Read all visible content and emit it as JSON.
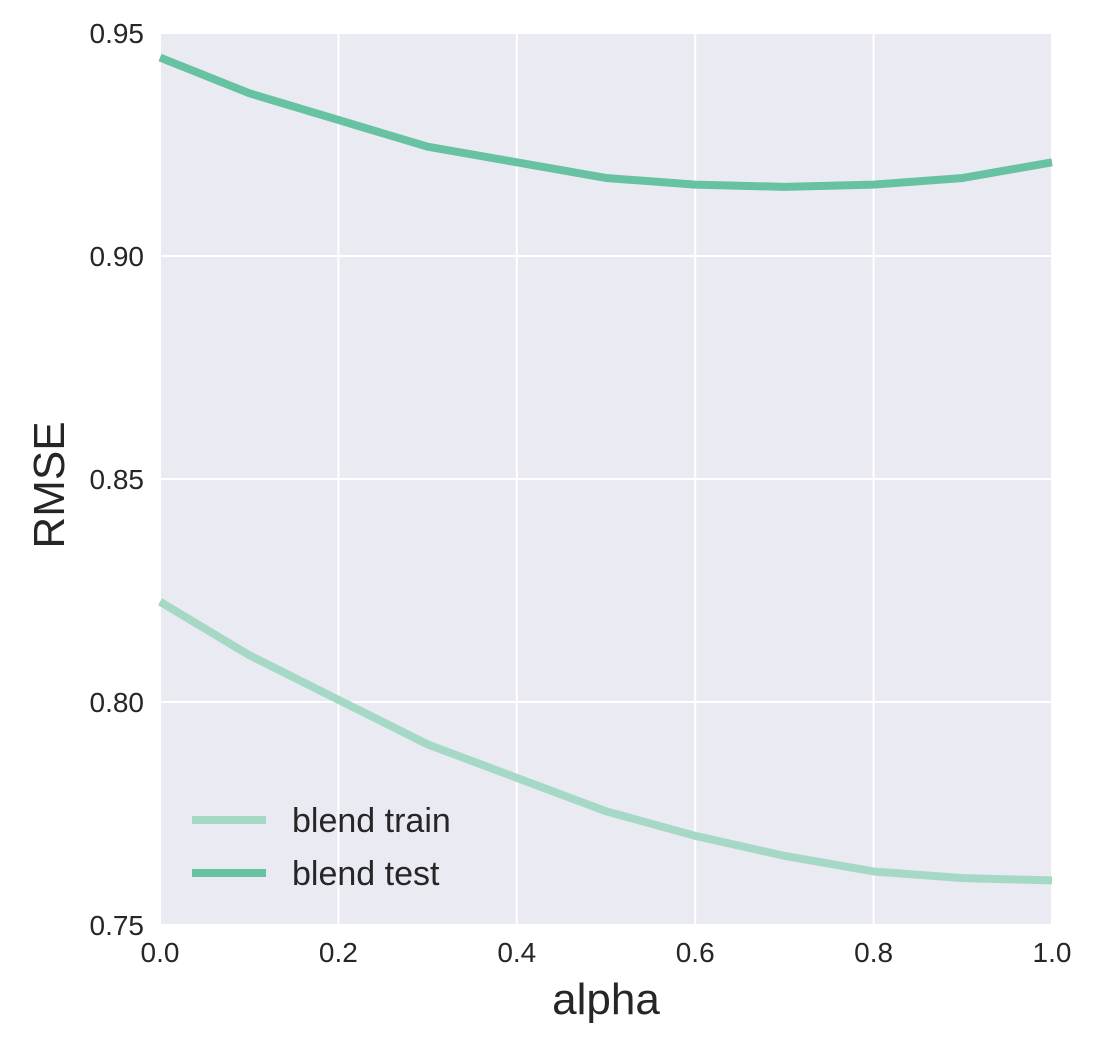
{
  "chart_data": {
    "type": "line",
    "xlabel": "alpha",
    "ylabel": "RMSE",
    "xlim": [
      0.0,
      1.0
    ],
    "ylim": [
      0.75,
      0.95
    ],
    "xticks": [
      "0.0",
      "0.2",
      "0.4",
      "0.6",
      "0.8",
      "1.0"
    ],
    "yticks": [
      "0.75",
      "0.80",
      "0.85",
      "0.90",
      "0.95"
    ],
    "x": [
      0.0,
      0.1,
      0.2,
      0.3,
      0.4,
      0.5,
      0.6,
      0.7,
      0.8,
      0.9,
      1.0
    ],
    "series": [
      {
        "name": "blend train",
        "color": "#a6d8c6",
        "values": [
          0.8225,
          0.8105,
          0.8005,
          0.7905,
          0.783,
          0.7755,
          0.77,
          0.7655,
          0.762,
          0.7605,
          0.76
        ]
      },
      {
        "name": "blend test",
        "color": "#66c2a0",
        "values": [
          0.9445,
          0.9365,
          0.9305,
          0.9245,
          0.921,
          0.9175,
          0.916,
          0.9155,
          0.916,
          0.9175,
          0.921
        ]
      }
    ],
    "grid": true,
    "legend_position": "bottom-left",
    "background": "#eaeaf2"
  }
}
